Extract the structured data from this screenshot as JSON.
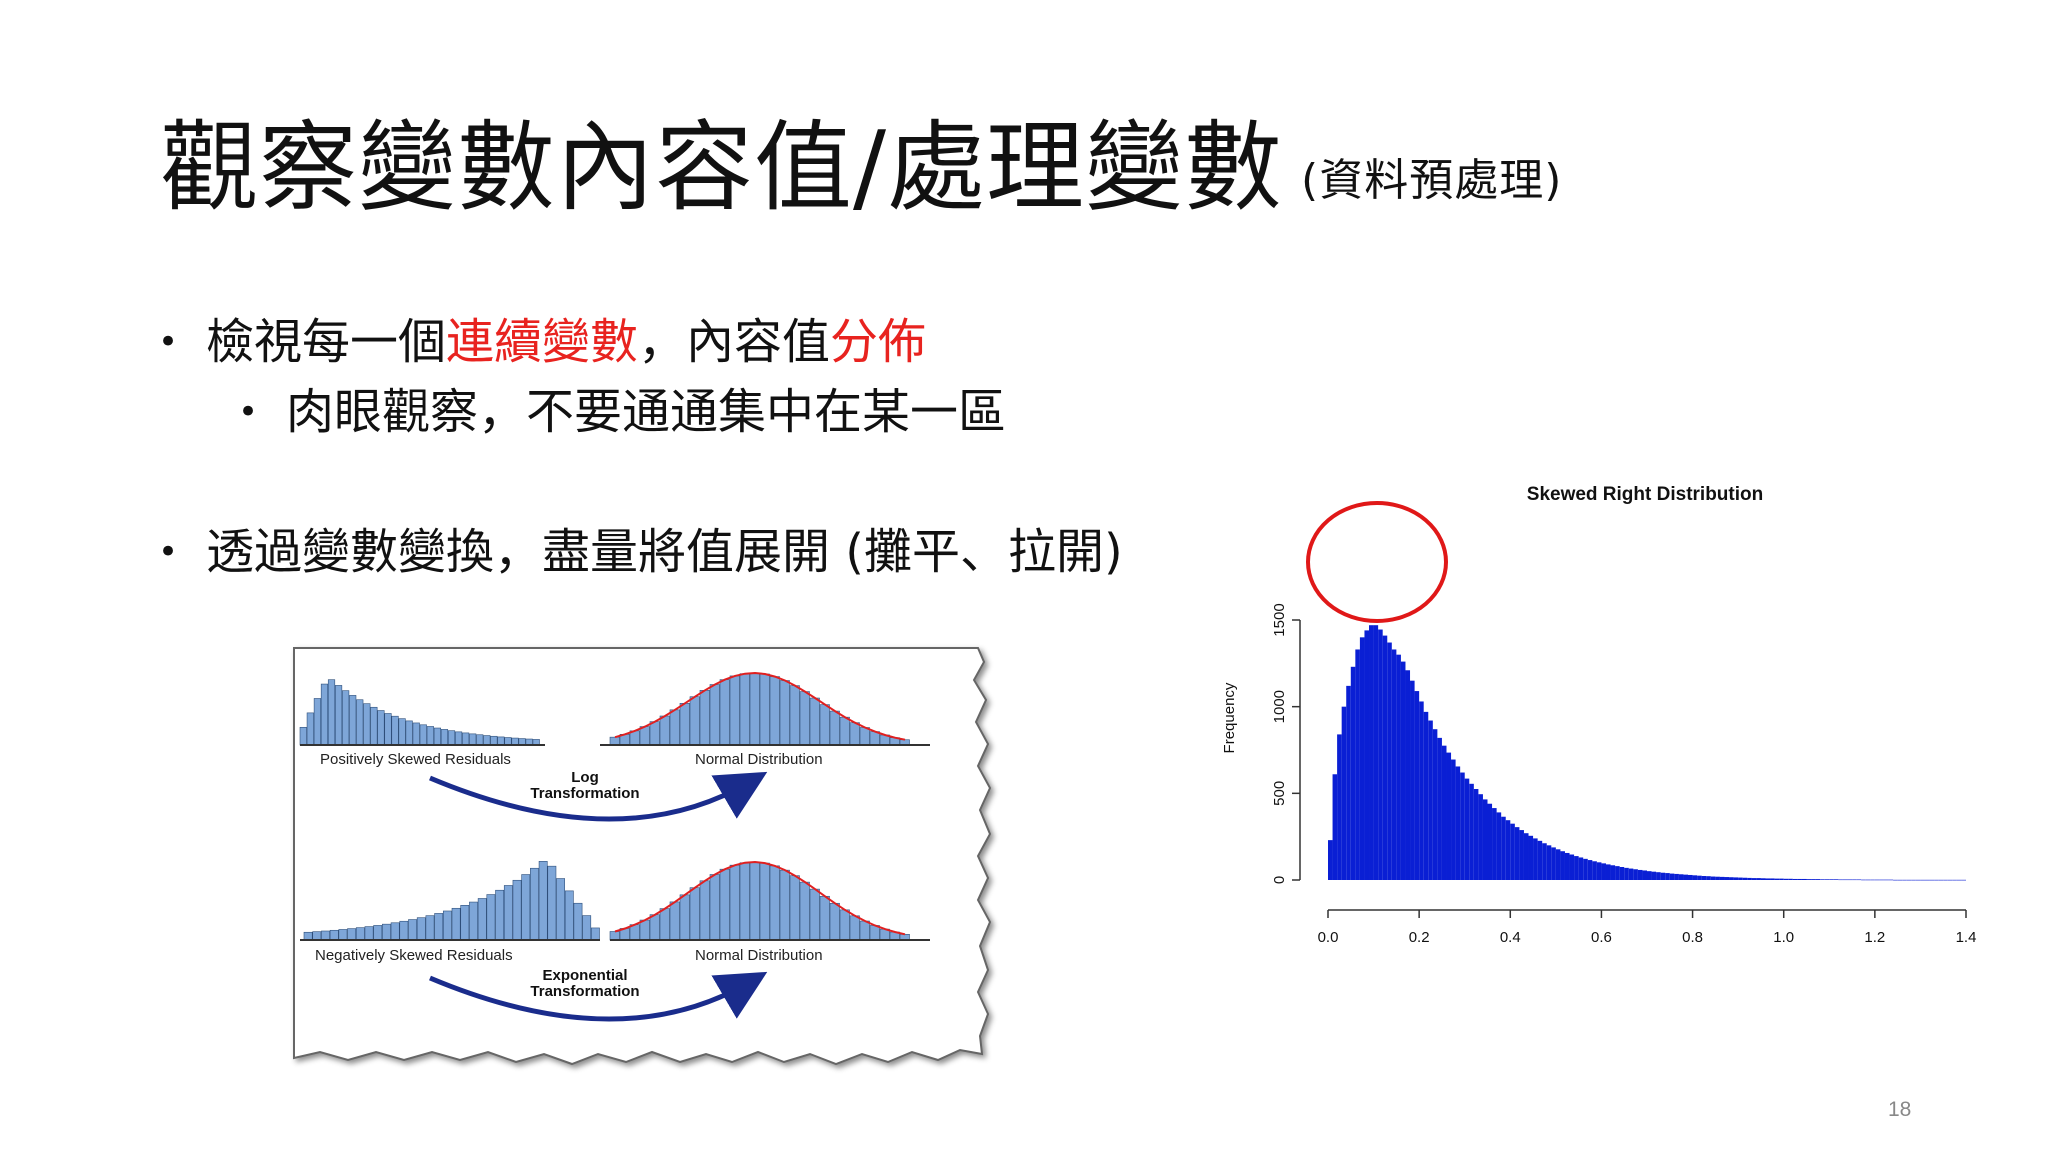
{
  "slide": {
    "title": "觀察變數內容值/處理變數",
    "title_suffix": "(資料預處理)",
    "slide_number": "18"
  },
  "bullets": [
    {
      "level": 1,
      "parts": [
        {
          "text": "檢視每一個",
          "highlight": false
        },
        {
          "text": "連續變數",
          "highlight": true
        },
        {
          "text": "，內容值",
          "highlight": false
        },
        {
          "text": "分佈",
          "highlight": true
        }
      ]
    },
    {
      "level": 2,
      "parts": [
        {
          "text": "肉眼觀察，不要通通集中在某一區",
          "highlight": false
        }
      ]
    },
    {
      "level": 1,
      "parts": [
        {
          "text": "透過變數變換，盡量將值展開 (攤平、拉開)",
          "highlight": false
        }
      ]
    }
  ],
  "colors": {
    "highlight": "#e8231f",
    "histogram": "#0a1fd4",
    "sketch_bars": "#7ea6d8",
    "curve": "#e02020",
    "circle": "#e01818",
    "arrow": "#1a2c8c"
  },
  "transform_figure": {
    "rows": [
      {
        "left_label": "Positively Skewed Residuals",
        "right_label": "Normal Distribution",
        "arrow_label_1": "Log",
        "arrow_label_2": "Transformation"
      },
      {
        "left_label": "Negatively Skewed Residuals",
        "right_label": "Normal Distribution",
        "arrow_label_1": "Exponential",
        "arrow_label_2": "Transformation"
      }
    ]
  },
  "chart_data": {
    "type": "bar",
    "title": "Skewed Right Distribution",
    "xlabel": "",
    "ylabel": "Frequency",
    "xlim": [
      0.0,
      1.4
    ],
    "ylim": [
      0,
      1500
    ],
    "x_ticks": [
      "0.0",
      "0.2",
      "0.4",
      "0.6",
      "0.8",
      "1.0",
      "1.2",
      "1.4"
    ],
    "y_ticks": [
      "0",
      "500",
      "1000",
      "1500"
    ],
    "bin_width": 0.01,
    "bin_start": 0.0,
    "values": [
      230,
      610,
      840,
      1000,
      1120,
      1230,
      1330,
      1400,
      1440,
      1470,
      1470,
      1445,
      1410,
      1370,
      1330,
      1300,
      1260,
      1210,
      1150,
      1090,
      1030,
      970,
      920,
      870,
      820,
      775,
      735,
      695,
      655,
      620,
      585,
      555,
      525,
      495,
      465,
      440,
      415,
      390,
      365,
      345,
      325,
      305,
      288,
      270,
      255,
      240,
      226,
      212,
      200,
      188,
      177,
      166,
      156,
      147,
      138,
      130,
      122,
      115,
      108,
      102,
      96,
      90,
      85,
      80,
      75,
      70,
      66,
      62,
      58,
      55,
      51,
      48,
      45,
      42,
      40,
      37,
      35,
      33,
      31,
      29,
      27,
      25,
      23,
      22,
      20,
      19,
      18,
      17,
      16,
      15,
      14,
      13,
      12,
      11,
      11,
      10,
      9,
      9,
      8,
      8,
      7,
      7,
      6,
      6,
      6,
      5,
      5,
      5,
      4,
      4,
      4,
      4,
      3,
      3,
      3,
      3,
      3,
      2,
      2,
      2,
      2,
      2,
      2,
      2,
      1,
      1,
      1,
      1,
      1,
      1,
      1,
      1,
      1,
      1,
      1,
      1,
      1,
      1,
      1,
      1
    ],
    "annotation": "peak circled in red"
  }
}
